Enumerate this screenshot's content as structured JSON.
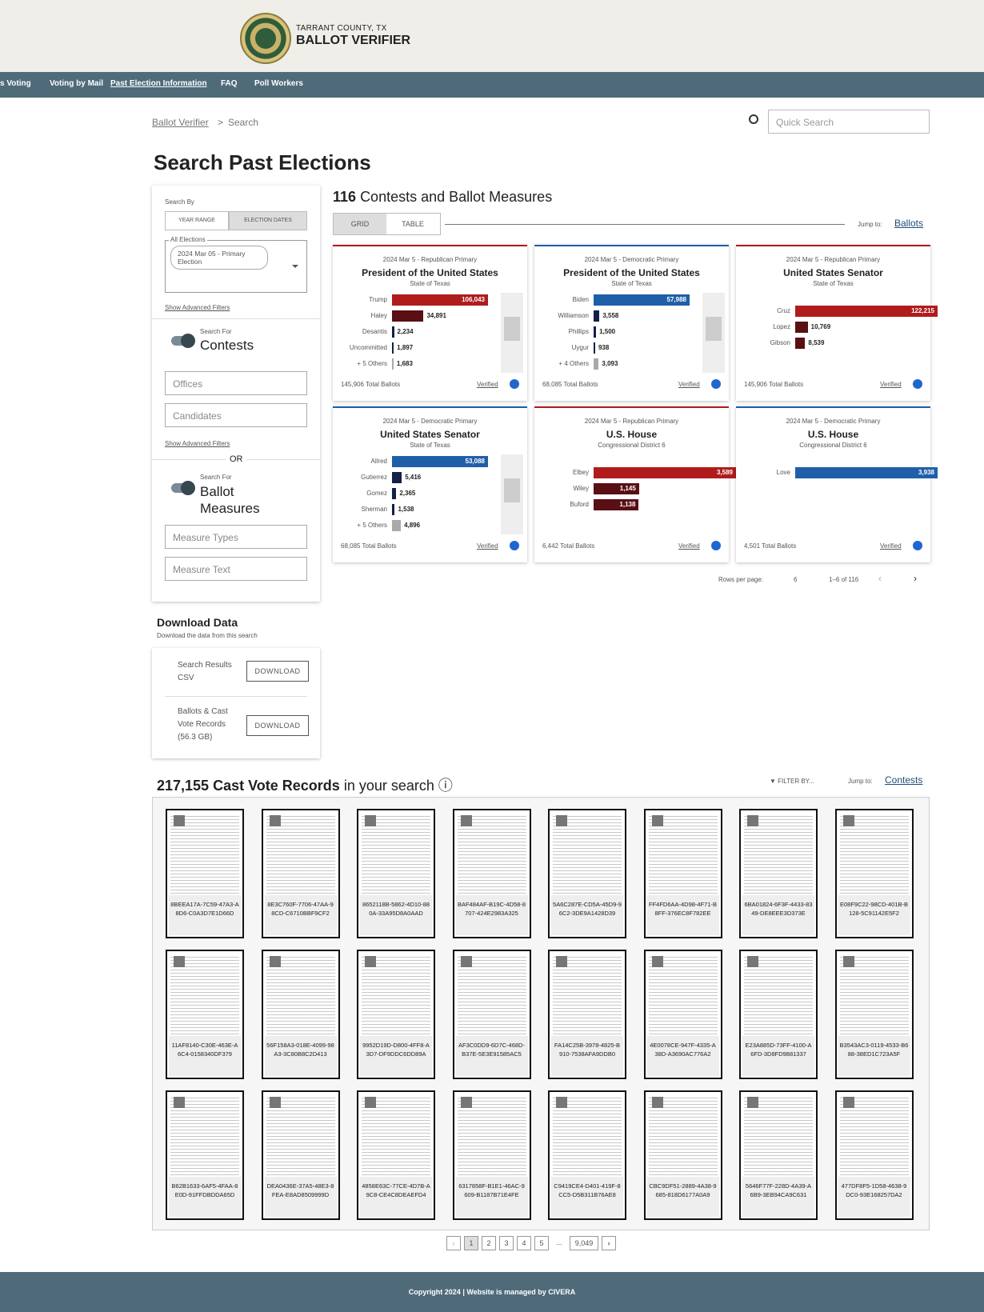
{
  "header": {
    "county": "TARRANT COUNTY, TX",
    "title": "BALLOT VERIFIER"
  },
  "nav": [
    "s Voting",
    "Voting by Mail",
    "Past Election Information",
    "FAQ",
    "Poll Workers"
  ],
  "breadcrumb": {
    "home": "Ballot Verifier",
    "separator": ">",
    "current": "Search"
  },
  "quick_search": "Quick Search",
  "page_title": "Search Past Elections",
  "sidebar": {
    "search_by": "Search By",
    "tabs": [
      "YEAR RANGE",
      "ELECTION DATES"
    ],
    "elections_label": "All Elections",
    "election_chip": "2024 Mar 05 - Primary Election",
    "advanced": "Show Advanced Filters",
    "search_for": "Search For",
    "contests": "Contests",
    "offices": "Offices",
    "candidates": "Candidates",
    "advanced_2": "Show Advanced Filters",
    "or": "OR",
    "search_for_2": "Search For",
    "measures": "Ballot Measures",
    "measure_types": "Measure Types",
    "measure_text": "Measure Text"
  },
  "results": {
    "count": "116",
    "label": "Contests and Ballot Measures",
    "views": [
      "GRID",
      "TABLE"
    ],
    "jump_label": "Jump to:",
    "jump_link": "Ballots",
    "cards": [
      {
        "election": "2024 Mar 5 - Republican Primary",
        "title": "President of the United States",
        "district": "State of Texas",
        "party_color": "#b01c1c",
        "names": [
          "Trump",
          "Haley",
          "Desantis",
          "Uncommitted",
          "+ 5 Others"
        ],
        "values": [
          106043,
          34891,
          2234,
          1897,
          1683
        ],
        "value_labels": [
          "106,043",
          "34,891",
          "2,234",
          "1,897",
          "1,683"
        ],
        "colors": [
          "#b01c1c",
          "#5a0f14",
          "#14204a",
          "#14204a",
          "#a9a9a9"
        ],
        "total": "145,906 Total Ballots",
        "verified": "Verified"
      },
      {
        "election": "2024 Mar 5 - Democratic Primary",
        "title": "President of the United States",
        "district": "State of Texas",
        "party_color": "#1f5fa8",
        "names": [
          "Biden",
          "Williamson",
          "Phillips",
          "Uygur",
          "+ 4 Others"
        ],
        "values": [
          57988,
          3558,
          1500,
          938,
          3093
        ],
        "value_labels": [
          "57,988",
          "3,558",
          "1,500",
          "938",
          "3,093"
        ],
        "colors": [
          "#1f5fa8",
          "#14204a",
          "#14204a",
          "#14204a",
          "#a9a9a9"
        ],
        "total": "68,085 Total Ballots",
        "verified": "Verified"
      },
      {
        "election": "2024 Mar 5 - Republican Primary",
        "title": "United States Senator",
        "district": "State of Texas",
        "party_color": "#b01c1c",
        "names": [
          "Cruz",
          "Lopez",
          "Gibson"
        ],
        "values": [
          122215,
          10769,
          8539
        ],
        "value_labels": [
          "122,215",
          "10,769",
          "8,539"
        ],
        "colors": [
          "#b01c1c",
          "#5a0f14",
          "#5a0f14"
        ],
        "total": "145,906 Total Ballots",
        "verified": "Verified"
      },
      {
        "election": "2024 Mar 5 - Democratic Primary",
        "title": "United States Senator",
        "district": "State of Texas",
        "party_color": "#1f5fa8",
        "names": [
          "Allred",
          "Gutierrez",
          "Gomez",
          "Sherman",
          "+ 5 Others"
        ],
        "values": [
          53088,
          5416,
          2365,
          1538,
          4896
        ],
        "value_labels": [
          "53,088",
          "5,416",
          "2,365",
          "1,538",
          "4,896"
        ],
        "colors": [
          "#1f5fa8",
          "#14204a",
          "#14204a",
          "#14204a",
          "#a9a9a9"
        ],
        "total": "68,085 Total Ballots",
        "verified": "Verified"
      },
      {
        "election": "2024 Mar 5 - Republican Primary",
        "title": "U.S. House",
        "district": "Congressional District 6",
        "party_color": "#b01c1c",
        "names": [
          "Elbey",
          "Wiley",
          "Buford"
        ],
        "values": [
          3589,
          1145,
          1138
        ],
        "value_labels": [
          "3,589",
          "1,145",
          "1,138"
        ],
        "colors": [
          "#b01c1c",
          "#5a0f14",
          "#5a0f14"
        ],
        "total": "6,442 Total Ballots",
        "verified": "Verified"
      },
      {
        "election": "2024 Mar 5 - Democratic Primary",
        "title": "U.S. House",
        "district": "Congressional District 6",
        "party_color": "#1f5fa8",
        "names": [
          "Love"
        ],
        "values": [
          3938
        ],
        "value_labels": [
          "3,938"
        ],
        "colors": [
          "#1f5fa8"
        ],
        "total": "4,501 Total Ballots",
        "verified": "Verified"
      }
    ],
    "rows_per_page_label": "Rows per page:",
    "rows_per_page": "6",
    "range": "1–6 of 116"
  },
  "download": {
    "title": "Download Data",
    "subtitle": "Download the data from this search",
    "items": [
      {
        "label": "Search Results CSV",
        "button": "DOWNLOAD"
      },
      {
        "label": "Ballots & Cast Vote Records (56.3 GB)",
        "button": "DOWNLOAD"
      }
    ]
  },
  "records": {
    "count": "217,155",
    "label": "Cast Vote Records",
    "suffix": "in your search",
    "filter": "FILTER BY...",
    "jump_label": "Jump to:",
    "jump_link": "Contests",
    "ballots": [
      "8BEEA17A-7C59-47A3-A8D6-C0A3D7E1D66D",
      "8E3C760F-7706-47AA-98CD-C6710BBF9CF2",
      "8652118B-5862-4D10-880A-33A95D8A0AAD",
      "BAF484AF-B19C-4D58-8707-424E2983A325",
      "5A6C287E-CD5A-45D9-96C2-3DE9A1428D39",
      "FF4FD6AA-4D98-4F71-B8FF-376EC8F782EE",
      "6BA01824-6F3F-4433-8349-DE8EEE3D373E",
      "E08F9C22-98CD-401B-B128-5C91142E5F2",
      "11AF8140-C30E-463E-A6C4-0158340DF379",
      "56F158A3-018E-4099-98A3-3C80B8C2D413",
      "9952D19D-D800-4FF8-A3D7-DF9DDC6DD89A",
      "AF3C0DD9-6D7C-468D-B37E-5E3E91585AC5",
      "FA14C25B-3978-4825-B910-7538AFA9DDB0",
      "4E0078CE-947F-4335-A38D-A3690AC776A2",
      "E23A885D-73FF-4100-A6FD-3D8FD9881337",
      "B3543AC3-0119-4533-B688-38ED1C723A5F",
      "B62B1633-6AF5-4FAA-8E0D-91FFDBDDA65D",
      "DEA0436E-37A5-48E3-8FEA-E8AD8509999D",
      "4858E63C-77CE-4D7B-A9C8-CE4C8DEAEFD4",
      "6317858F-B1E1-46AC-9609-B1187B71E4FE",
      "C9419CE4-D401-419F-8CC5-D5B311B76AE8",
      "CBC9DF51-2889-4A38-9685-818D6177A0A9",
      "5646F77F-228D-4A39-A6B9-3EB94CA9C631",
      "477DF8F5-1D58-4638-9DC0-93E168257DA2"
    ],
    "pages": [
      "1",
      "2",
      "3",
      "4",
      "5",
      "...",
      "9,049"
    ]
  },
  "footer": "Copyright 2024 | Website is managed by CIVERA"
}
